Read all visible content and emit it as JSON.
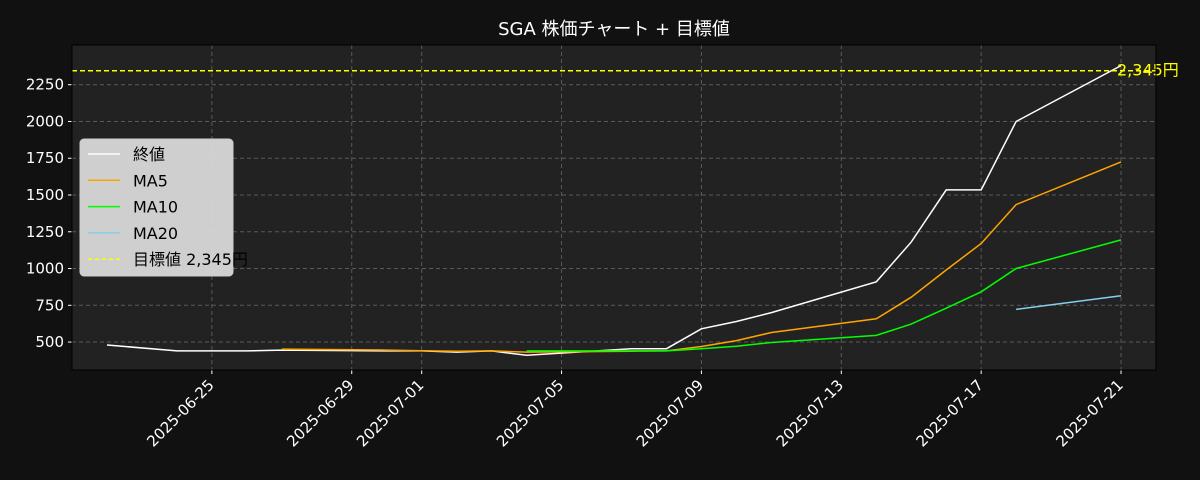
{
  "chart_data": {
    "type": "line",
    "title": "SGA 株価チャート + 目標値",
    "xlabel": "",
    "ylabel": "",
    "x_ticks": [
      "2025-06-25",
      "2025-06-29",
      "2025-07-01",
      "2025-07-05",
      "2025-07-09",
      "2025-07-13",
      "2025-07-17",
      "2025-07-21"
    ],
    "y_ticks": [
      500,
      750,
      1000,
      1250,
      1500,
      1750,
      2000,
      2250
    ],
    "xlim": [
      "2025-06-21",
      "2025-07-22"
    ],
    "ylim": [
      310,
      2520
    ],
    "grid": true,
    "legend_position": "center-left",
    "series": [
      {
        "name": "終値",
        "color": "#ffffff",
        "points": [
          [
            "2025-06-22",
            480
          ],
          [
            "2025-06-24",
            440
          ],
          [
            "2025-06-25",
            440
          ],
          [
            "2025-06-26",
            440
          ],
          [
            "2025-06-27",
            445
          ],
          [
            "2025-06-30",
            440
          ],
          [
            "2025-07-01",
            440
          ],
          [
            "2025-07-02",
            432
          ],
          [
            "2025-07-03",
            440
          ],
          [
            "2025-07-04",
            410
          ],
          [
            "2025-07-07",
            455
          ],
          [
            "2025-07-08",
            455
          ],
          [
            "2025-07-09",
            590
          ],
          [
            "2025-07-10",
            640
          ],
          [
            "2025-07-11",
            700
          ],
          [
            "2025-07-14",
            910
          ],
          [
            "2025-07-15",
            1180
          ],
          [
            "2025-07-16",
            1535
          ],
          [
            "2025-07-17",
            1535
          ],
          [
            "2025-07-18",
            2000
          ],
          [
            "2025-07-21",
            2380
          ]
        ]
      },
      {
        "name": "MA5",
        "color": "#ffa500",
        "points": [
          [
            "2025-06-27",
            452
          ],
          [
            "2025-06-30",
            445
          ],
          [
            "2025-07-01",
            441
          ],
          [
            "2025-07-02",
            438
          ],
          [
            "2025-07-03",
            440
          ],
          [
            "2025-07-04",
            432
          ],
          [
            "2025-07-07",
            438
          ],
          [
            "2025-07-08",
            440
          ],
          [
            "2025-07-09",
            470
          ],
          [
            "2025-07-10",
            510
          ],
          [
            "2025-07-11",
            565
          ],
          [
            "2025-07-14",
            658
          ],
          [
            "2025-07-15",
            805
          ],
          [
            "2025-07-16",
            990
          ],
          [
            "2025-07-17",
            1170
          ],
          [
            "2025-07-18",
            1435
          ],
          [
            "2025-07-21",
            1725
          ]
        ]
      },
      {
        "name": "MA10",
        "color": "#00ff00",
        "points": [
          [
            "2025-07-04",
            440
          ],
          [
            "2025-07-07",
            440
          ],
          [
            "2025-07-08",
            440
          ],
          [
            "2025-07-09",
            455
          ],
          [
            "2025-07-10",
            472
          ],
          [
            "2025-07-11",
            497
          ],
          [
            "2025-07-14",
            545
          ],
          [
            "2025-07-15",
            622
          ],
          [
            "2025-07-16",
            730
          ],
          [
            "2025-07-17",
            842
          ],
          [
            "2025-07-18",
            1000
          ],
          [
            "2025-07-21",
            1195
          ]
        ]
      },
      {
        "name": "MA20",
        "color": "#87ceeb",
        "points": [
          [
            "2025-07-18",
            722
          ],
          [
            "2025-07-21",
            815
          ]
        ]
      }
    ],
    "target": {
      "legend_label": "目標値 2,345円",
      "label": "2,345円",
      "value": 2345,
      "color": "#ffff00"
    }
  }
}
